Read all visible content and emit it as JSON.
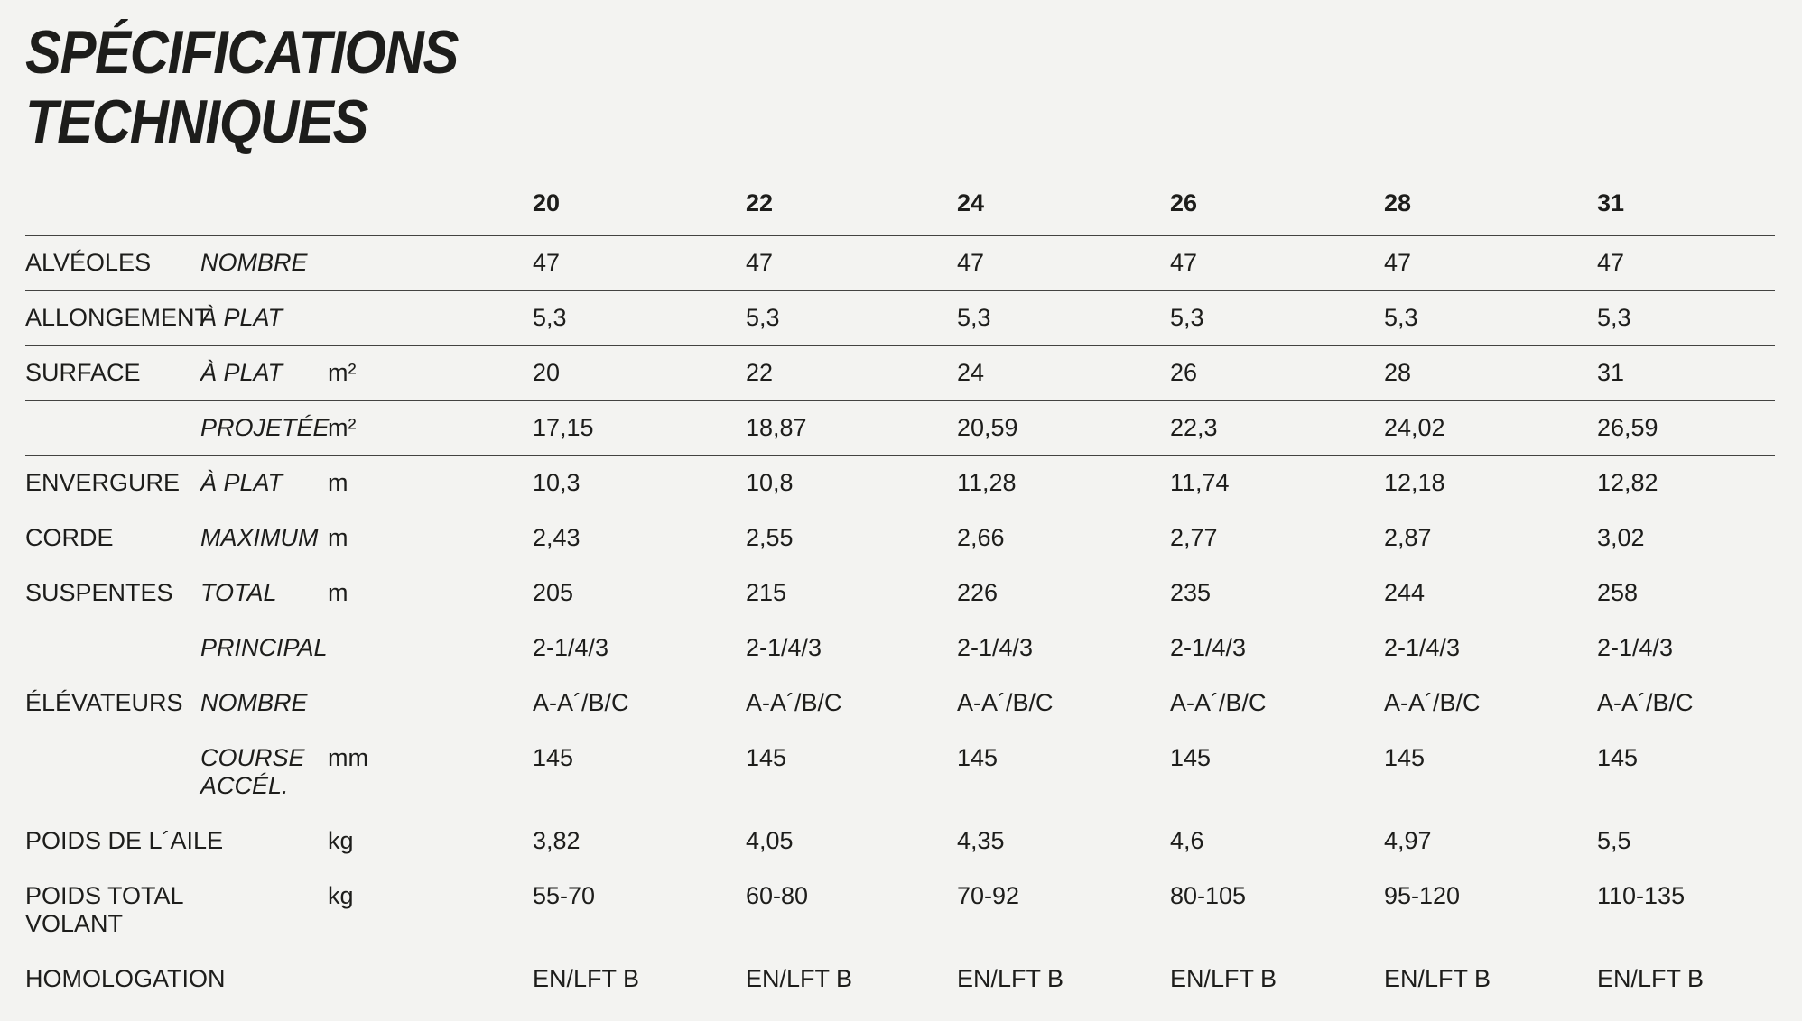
{
  "page": {
    "title_line1": "SPÉCIFICATIONS",
    "title_line2": "TECHNIQUES",
    "background_color": "#f3f3f1",
    "text_color": "#1d1d1b",
    "rule_color": "#434341"
  },
  "table": {
    "sizes": [
      "20",
      "22",
      "24",
      "26",
      "28",
      "31"
    ],
    "rows": [
      {
        "label_lines": [
          "ALVÉOLES"
        ],
        "sublabel_lines": [
          "NOMBRE"
        ],
        "unit": "",
        "values": [
          "47",
          "47",
          "47",
          "47",
          "47",
          "47"
        ]
      },
      {
        "label_lines": [
          "ALLONGEMENT"
        ],
        "sublabel_lines": [
          "À PLAT"
        ],
        "unit": "",
        "values": [
          "5,3",
          "5,3",
          "5,3",
          "5,3",
          "5,3",
          "5,3"
        ]
      },
      {
        "label_lines": [
          "SURFACE"
        ],
        "sublabel_lines": [
          "À PLAT"
        ],
        "unit": "m²",
        "values": [
          "20",
          "22",
          "24",
          "26",
          "28",
          "31"
        ]
      },
      {
        "label_lines": [],
        "sublabel_lines": [
          "PROJETÉE"
        ],
        "unit": "m²",
        "values": [
          "17,15",
          "18,87",
          "20,59",
          "22,3",
          "24,02",
          "26,59"
        ]
      },
      {
        "label_lines": [
          "ENVERGURE"
        ],
        "sublabel_lines": [
          "À PLAT"
        ],
        "unit": "m",
        "values": [
          "10,3",
          "10,8",
          "11,28",
          "11,74",
          "12,18",
          "12,82"
        ]
      },
      {
        "label_lines": [
          "CORDE"
        ],
        "sublabel_lines": [
          "MAXIMUM"
        ],
        "unit": "m",
        "values": [
          "2,43",
          "2,55",
          "2,66",
          "2,77",
          "2,87",
          "3,02"
        ]
      },
      {
        "label_lines": [
          "SUSPENTES"
        ],
        "sublabel_lines": [
          "TOTAL"
        ],
        "unit": "m",
        "values": [
          "205",
          "215",
          "226",
          "235",
          "244",
          "258"
        ]
      },
      {
        "label_lines": [],
        "sublabel_lines": [
          "PRINCIPAL"
        ],
        "unit": "",
        "values": [
          "2-1/4/3",
          "2-1/4/3",
          "2-1/4/3",
          "2-1/4/3",
          "2-1/4/3",
          "2-1/4/3"
        ]
      },
      {
        "label_lines": [
          "ÉLÉVATEURS"
        ],
        "sublabel_lines": [
          "NOMBRE"
        ],
        "unit": "",
        "values": [
          "A-A´/B/C",
          "A-A´/B/C",
          "A-A´/B/C",
          "A-A´/B/C",
          "A-A´/B/C",
          "A-A´/B/C"
        ]
      },
      {
        "label_lines": [],
        "sublabel_lines": [
          "COURSE",
          "ACCÉL."
        ],
        "unit": "mm",
        "values": [
          "145",
          "145",
          "145",
          "145",
          "145",
          "145"
        ]
      },
      {
        "label_lines": [
          "POIDS DE L´AILE"
        ],
        "sublabel_lines": [],
        "unit": "kg",
        "values": [
          "3,82",
          "4,05",
          "4,35",
          "4,6",
          "4,97",
          "5,5"
        ]
      },
      {
        "label_lines": [
          "POIDS TOTAL",
          "VOLANT"
        ],
        "sublabel_lines": [],
        "unit": "kg",
        "values": [
          "55-70",
          "60-80",
          "70-92",
          "80-105",
          "95-120",
          "110-135"
        ]
      },
      {
        "label_lines": [
          "HOMOLOGATION"
        ],
        "sublabel_lines": [],
        "unit": "",
        "values": [
          "EN/LFT B",
          "EN/LFT B",
          "EN/LFT B",
          "EN/LFT B",
          "EN/LFT B",
          "EN/LFT B"
        ]
      }
    ]
  }
}
